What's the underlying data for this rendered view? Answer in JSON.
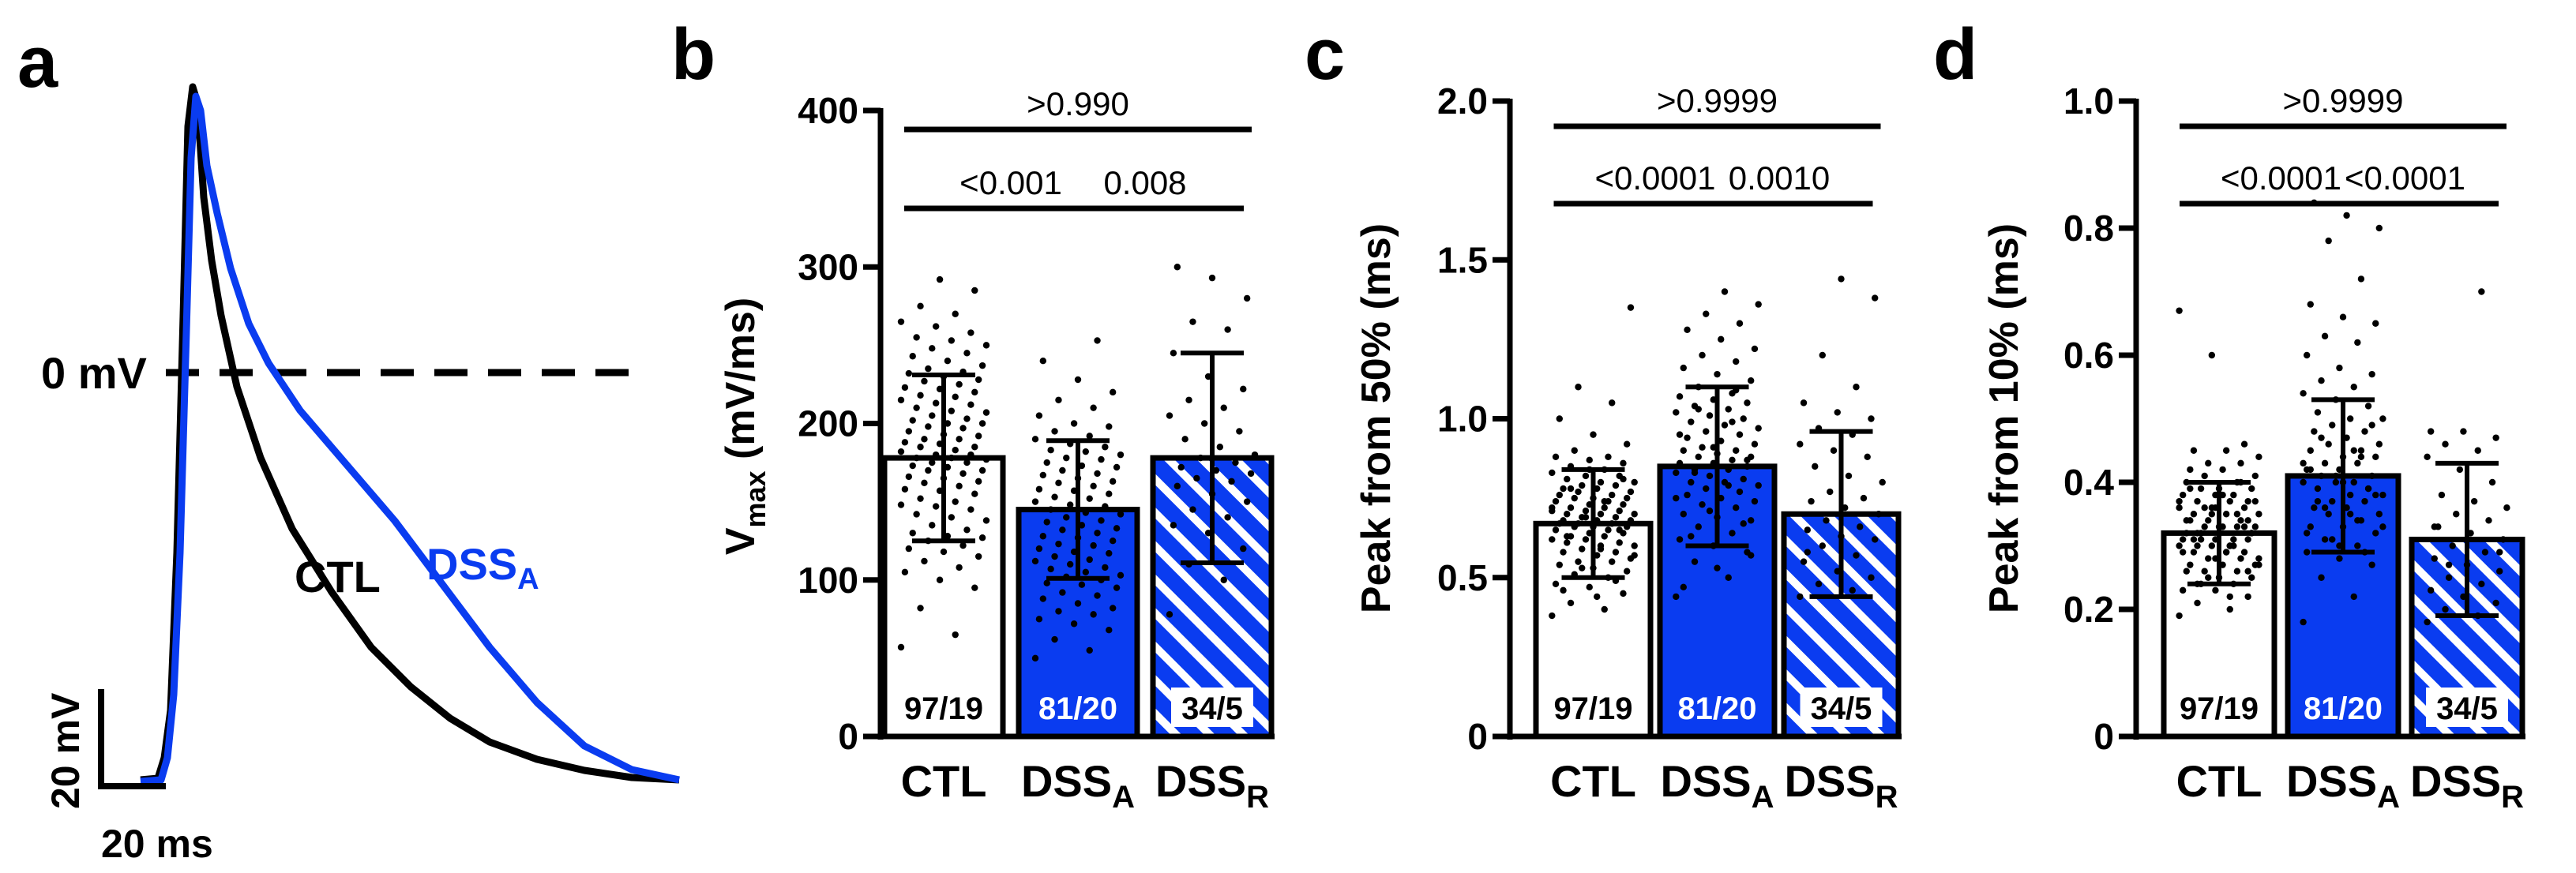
{
  "colors": {
    "ctl": "#000000",
    "dss_a": "#0a3cf0",
    "bar_ctl": "#ffffff",
    "black": "#000000"
  },
  "panel_a": {
    "label": "a",
    "zero_label": "0 mV",
    "ctl_label": "CTL",
    "dss_label": "DSS",
    "dss_sub": "A",
    "scale_v": "20 mV",
    "scale_t": "20 ms"
  },
  "chart_data": [
    {
      "panel": "b",
      "type": "bar",
      "categories": [
        "CTL",
        "DSS_A",
        "DSS_R"
      ],
      "category_labels": [
        {
          "main": "CTL",
          "sub": ""
        },
        {
          "main": "DSS",
          "sub": "A"
        },
        {
          "main": "DSS",
          "sub": "R"
        }
      ],
      "values": [
        178,
        145,
        178
      ],
      "sd": [
        53,
        44,
        67
      ],
      "n_labels": [
        "97/19",
        "81/20",
        "34/5"
      ],
      "ylabel_main": "V",
      "ylabel_sub": "max",
      "ylabel_rest": " (mV/ms)",
      "ylim": [
        0,
        400
      ],
      "yticks": [
        0,
        100,
        200,
        300,
        400
      ],
      "comparisons": [
        {
          "from": 0,
          "to": 1,
          "label": "<0.001",
          "level": 1
        },
        {
          "from": 1,
          "to": 2,
          "label": "0.008",
          "level": 1
        },
        {
          "from": 0,
          "to": 2,
          "label": ">0.990",
          "level": 2
        }
      ],
      "points": [
        [
          57,
          65,
          82,
          95,
          100,
          105,
          108,
          112,
          115,
          118,
          120,
          122,
          125,
          127,
          128,
          130,
          132,
          135,
          138,
          140,
          142,
          145,
          147,
          148,
          150,
          152,
          155,
          157,
          158,
          160,
          162,
          163,
          165,
          166,
          168,
          170,
          170,
          172,
          173,
          175,
          175,
          177,
          178,
          178,
          180,
          180,
          182,
          183,
          185,
          185,
          187,
          188,
          190,
          190,
          192,
          193,
          195,
          197,
          198,
          200,
          200,
          202,
          203,
          205,
          207,
          208,
          210,
          212,
          213,
          215,
          217,
          218,
          220,
          222,
          223,
          225,
          227,
          228,
          230,
          232,
          233,
          235,
          237,
          240,
          243,
          245,
          248,
          250,
          253,
          255,
          258,
          262,
          265,
          270,
          275,
          285,
          292
        ],
        [
          50,
          55,
          62,
          68,
          72,
          75,
          78,
          80,
          82,
          85,
          88,
          90,
          92,
          95,
          97,
          98,
          100,
          102,
          103,
          105,
          107,
          108,
          110,
          112,
          113,
          115,
          117,
          118,
          120,
          122,
          123,
          125,
          127,
          128,
          130,
          132,
          133,
          135,
          137,
          138,
          140,
          142,
          143,
          145,
          147,
          148,
          150,
          152,
          153,
          155,
          157,
          158,
          160,
          162,
          163,
          165,
          167,
          168,
          170,
          172,
          173,
          175,
          177,
          178,
          180,
          182,
          183,
          185,
          187,
          190,
          192,
          195,
          198,
          200,
          205,
          210,
          215,
          220,
          228,
          240,
          253
        ],
        [
          78,
          100,
          110,
          120,
          130,
          135,
          140,
          145,
          150,
          155,
          160,
          163,
          165,
          168,
          170,
          172,
          175,
          178,
          180,
          185,
          190,
          195,
          200,
          205,
          210,
          215,
          222,
          230,
          245,
          260,
          265,
          280,
          293,
          300
        ]
      ]
    },
    {
      "panel": "c",
      "type": "bar",
      "categories": [
        "CTL",
        "DSS_A",
        "DSS_R"
      ],
      "category_labels": [
        {
          "main": "CTL",
          "sub": ""
        },
        {
          "main": "DSS",
          "sub": "A"
        },
        {
          "main": "DSS",
          "sub": "R"
        }
      ],
      "values": [
        0.67,
        0.85,
        0.7
      ],
      "sd": [
        0.17,
        0.25,
        0.26
      ],
      "n_labels": [
        "97/19",
        "81/20",
        "34/5"
      ],
      "ylabel_main": "Peak from 50% (ms)",
      "ylabel_sub": "",
      "ylabel_rest": "",
      "ylim": [
        0,
        2.0
      ],
      "yticks": [
        0,
        0.5,
        1.0,
        1.5,
        2.0
      ],
      "ytick_labels": [
        "0",
        "0.5",
        "1.0",
        "1.5",
        "2.0"
      ],
      "comparisons": [
        {
          "from": 0,
          "to": 1,
          "label": "<0.0001",
          "level": 1
        },
        {
          "from": 1,
          "to": 2,
          "label": "0.0010",
          "level": 1
        },
        {
          "from": 0,
          "to": 2,
          "label": ">0.9999",
          "level": 2
        }
      ],
      "points": [
        [
          0.38,
          0.4,
          0.42,
          0.45,
          0.47,
          0.48,
          0.5,
          0.51,
          0.52,
          0.53,
          0.54,
          0.55,
          0.55,
          0.56,
          0.57,
          0.58,
          0.58,
          0.59,
          0.6,
          0.6,
          0.61,
          0.61,
          0.62,
          0.62,
          0.63,
          0.63,
          0.64,
          0.64,
          0.65,
          0.65,
          0.66,
          0.66,
          0.66,
          0.67,
          0.67,
          0.67,
          0.68,
          0.68,
          0.68,
          0.69,
          0.69,
          0.7,
          0.7,
          0.7,
          0.71,
          0.71,
          0.72,
          0.72,
          0.72,
          0.73,
          0.73,
          0.74,
          0.74,
          0.75,
          0.75,
          0.75,
          0.76,
          0.76,
          0.77,
          0.77,
          0.78,
          0.78,
          0.79,
          0.79,
          0.8,
          0.8,
          0.81,
          0.82,
          0.82,
          0.83,
          0.84,
          0.85,
          0.86,
          0.87,
          0.88,
          0.88,
          0.9,
          0.92,
          0.95,
          1.0,
          1.05,
          1.1,
          1.35,
          0.44,
          0.46,
          0.49,
          0.53,
          0.57,
          0.59,
          0.63,
          0.65,
          0.69,
          0.71,
          0.74,
          0.78,
          0.81,
          0.84
        ],
        [
          0.44,
          0.5,
          0.55,
          0.58,
          0.6,
          0.62,
          0.64,
          0.66,
          0.68,
          0.69,
          0.7,
          0.72,
          0.73,
          0.74,
          0.75,
          0.76,
          0.77,
          0.78,
          0.79,
          0.8,
          0.8,
          0.81,
          0.82,
          0.83,
          0.84,
          0.84,
          0.85,
          0.86,
          0.86,
          0.87,
          0.88,
          0.88,
          0.89,
          0.9,
          0.9,
          0.91,
          0.92,
          0.93,
          0.94,
          0.95,
          0.96,
          0.97,
          0.98,
          0.99,
          1.0,
          1.01,
          1.02,
          1.03,
          1.04,
          1.05,
          1.06,
          1.07,
          1.08,
          1.1,
          1.12,
          1.14,
          1.16,
          1.18,
          1.2,
          1.22,
          1.25,
          1.28,
          1.3,
          1.33,
          1.36,
          1.4,
          0.63,
          0.67,
          0.71,
          0.75,
          0.79,
          0.83,
          0.87,
          0.91,
          0.95,
          0.99,
          1.03,
          0.57,
          0.53,
          0.47,
          1.09
        ],
        [
          0.44,
          0.46,
          0.48,
          0.5,
          0.52,
          0.55,
          0.57,
          0.6,
          0.62,
          0.63,
          0.65,
          0.66,
          0.68,
          0.7,
          0.72,
          0.74,
          0.75,
          0.77,
          0.8,
          0.82,
          0.85,
          0.88,
          0.9,
          0.92,
          0.95,
          0.97,
          1.0,
          1.02,
          1.05,
          1.1,
          1.2,
          1.38,
          1.44,
          0.58
        ]
      ]
    },
    {
      "panel": "d",
      "type": "bar",
      "categories": [
        "CTL",
        "DSS_A",
        "DSS_R"
      ],
      "category_labels": [
        {
          "main": "CTL",
          "sub": ""
        },
        {
          "main": "DSS",
          "sub": "A"
        },
        {
          "main": "DSS",
          "sub": "R"
        }
      ],
      "values": [
        0.32,
        0.41,
        0.31
      ],
      "sd": [
        0.08,
        0.12,
        0.12
      ],
      "n_labels": [
        "97/19",
        "81/20",
        "34/5"
      ],
      "ylabel_main": "Peak from 10% (ms)",
      "ylabel_sub": "",
      "ylabel_rest": "",
      "ylim": [
        0,
        1.0
      ],
      "yticks": [
        0,
        0.2,
        0.4,
        0.6,
        0.8,
        1.0
      ],
      "ytick_labels": [
        "0",
        "0.2",
        "0.4",
        "0.6",
        "0.8",
        "1.0"
      ],
      "comparisons": [
        {
          "from": 0,
          "to": 1,
          "label": "<0.0001",
          "level": 1
        },
        {
          "from": 1,
          "to": 2,
          "label": "<0.0001",
          "level": 1
        },
        {
          "from": 0,
          "to": 2,
          "label": ">0.9999",
          "level": 2
        }
      ],
      "points": [
        [
          0.19,
          0.2,
          0.21,
          0.22,
          0.23,
          0.23,
          0.24,
          0.24,
          0.25,
          0.25,
          0.26,
          0.26,
          0.26,
          0.27,
          0.27,
          0.27,
          0.28,
          0.28,
          0.28,
          0.29,
          0.29,
          0.29,
          0.3,
          0.3,
          0.3,
          0.3,
          0.31,
          0.31,
          0.31,
          0.31,
          0.32,
          0.32,
          0.32,
          0.32,
          0.33,
          0.33,
          0.33,
          0.33,
          0.34,
          0.34,
          0.34,
          0.35,
          0.35,
          0.35,
          0.36,
          0.36,
          0.36,
          0.37,
          0.37,
          0.37,
          0.38,
          0.38,
          0.38,
          0.39,
          0.39,
          0.39,
          0.4,
          0.4,
          0.41,
          0.41,
          0.42,
          0.42,
          0.43,
          0.43,
          0.44,
          0.45,
          0.45,
          0.46,
          0.6,
          0.67,
          0.22,
          0.24,
          0.26,
          0.28,
          0.29,
          0.3,
          0.31,
          0.32,
          0.33,
          0.34,
          0.35,
          0.36,
          0.37,
          0.38,
          0.39,
          0.4,
          0.25,
          0.27,
          0.29,
          0.31,
          0.33,
          0.35,
          0.37,
          0.3,
          0.32,
          0.34,
          0.36
        ],
        [
          0.18,
          0.22,
          0.25,
          0.27,
          0.28,
          0.29,
          0.3,
          0.31,
          0.32,
          0.33,
          0.33,
          0.34,
          0.35,
          0.35,
          0.36,
          0.36,
          0.37,
          0.37,
          0.38,
          0.38,
          0.39,
          0.39,
          0.4,
          0.4,
          0.4,
          0.41,
          0.41,
          0.42,
          0.42,
          0.43,
          0.43,
          0.44,
          0.44,
          0.45,
          0.45,
          0.46,
          0.46,
          0.47,
          0.48,
          0.48,
          0.49,
          0.5,
          0.5,
          0.51,
          0.52,
          0.53,
          0.54,
          0.55,
          0.56,
          0.57,
          0.58,
          0.6,
          0.62,
          0.63,
          0.65,
          0.66,
          0.68,
          0.72,
          0.78,
          0.8,
          0.82,
          0.84,
          0.29,
          0.31,
          0.33,
          0.35,
          0.37,
          0.39,
          0.41,
          0.43,
          0.45,
          0.47,
          0.49,
          0.3,
          0.32,
          0.34,
          0.36,
          0.38,
          0.4,
          0.42,
          0.44
        ],
        [
          0.18,
          0.19,
          0.2,
          0.21,
          0.22,
          0.23,
          0.24,
          0.25,
          0.26,
          0.27,
          0.28,
          0.29,
          0.3,
          0.31,
          0.32,
          0.33,
          0.34,
          0.35,
          0.36,
          0.37,
          0.38,
          0.4,
          0.42,
          0.44,
          0.45,
          0.46,
          0.47,
          0.48,
          0.48,
          0.7,
          0.27,
          0.29,
          0.31,
          0.33
        ]
      ]
    }
  ]
}
